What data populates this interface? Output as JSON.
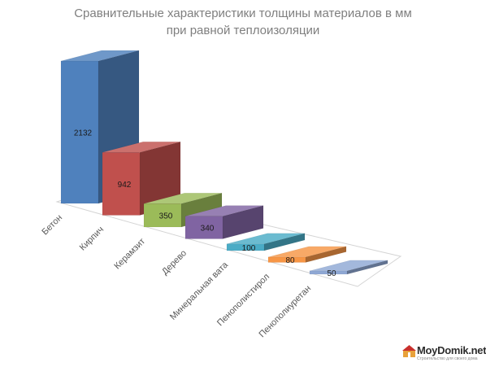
{
  "chart_data": {
    "type": "bar",
    "title_lines": [
      "Сравнительные характеристики толщины материалов в мм",
      "при равной теплоизоляции"
    ],
    "xlabel": "",
    "ylabel": "",
    "grid": false,
    "legend": "none",
    "three_d": true,
    "categories": [
      "Бетон",
      "Кирпич",
      "Керамзит",
      "Дерево",
      "Минеральная вата",
      "Пенополистирол",
      "Пенополиуретан"
    ],
    "values": [
      2132,
      942,
      350,
      340,
      100,
      80,
      50
    ],
    "data_labels": [
      "2132",
      "942",
      "350",
      "340",
      "100",
      "80",
      "50"
    ],
    "colors": [
      "#4f81bd",
      "#c0504d",
      "#9bbb59",
      "#8064a2",
      "#4bacc6",
      "#f79646",
      "#8fa8d4"
    ]
  },
  "watermark": {
    "brand": "MoyDomik.net",
    "tagline": "Строительство для своего дома"
  }
}
